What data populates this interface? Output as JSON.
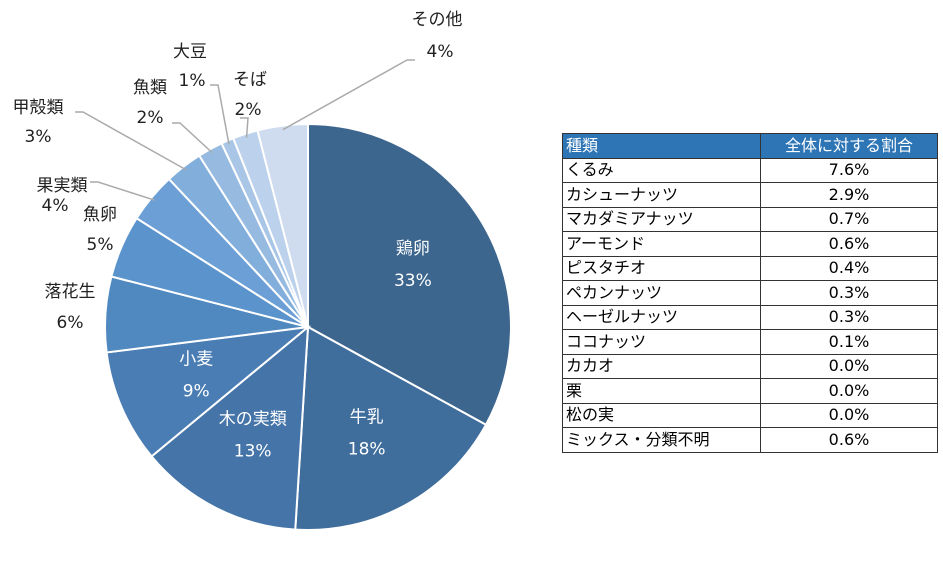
{
  "chart_data": {
    "type": "pie",
    "categories": [
      "鶏卵",
      "牛乳",
      "木の実類",
      "小麦",
      "落花生",
      "魚卵",
      "果実類",
      "甲殻類",
      "魚類",
      "大豆",
      "そば",
      "その他"
    ],
    "values": [
      33,
      18,
      13,
      9,
      6,
      5,
      4,
      3,
      2,
      1,
      2,
      4
    ],
    "value_labels": [
      "33%",
      "18%",
      "13%",
      "9%",
      "6%",
      "5%",
      "4%",
      "3%",
      "2%",
      "1%",
      "2%",
      "4%"
    ],
    "colors": [
      "#3d668f",
      "#3f6d9c",
      "#4474a8",
      "#4a7db4",
      "#5088c0",
      "#5b93cc",
      "#6b9fd6",
      "#82aedb",
      "#97bbe0",
      "#a9c6e6",
      "#bcd1ec",
      "#cfdcef"
    ]
  },
  "table": {
    "header": [
      "種類",
      "全体に対する割合"
    ],
    "rows": [
      [
        "くるみ",
        "7.6%"
      ],
      [
        "カシューナッツ",
        "2.9%"
      ],
      [
        "マカダミアナッツ",
        "0.7%"
      ],
      [
        "アーモンド",
        "0.6%"
      ],
      [
        "ピスタチオ",
        "0.4%"
      ],
      [
        "ペカンナッツ",
        "0.3%"
      ],
      [
        "ヘーゼルナッツ",
        "0.3%"
      ],
      [
        "ココナッツ",
        "0.1%"
      ],
      [
        "カカオ",
        "0.0%"
      ],
      [
        "栗",
        "0.0%"
      ],
      [
        "松の実",
        "0.0%"
      ],
      [
        "ミックス・分類不明",
        "0.6%"
      ]
    ]
  }
}
